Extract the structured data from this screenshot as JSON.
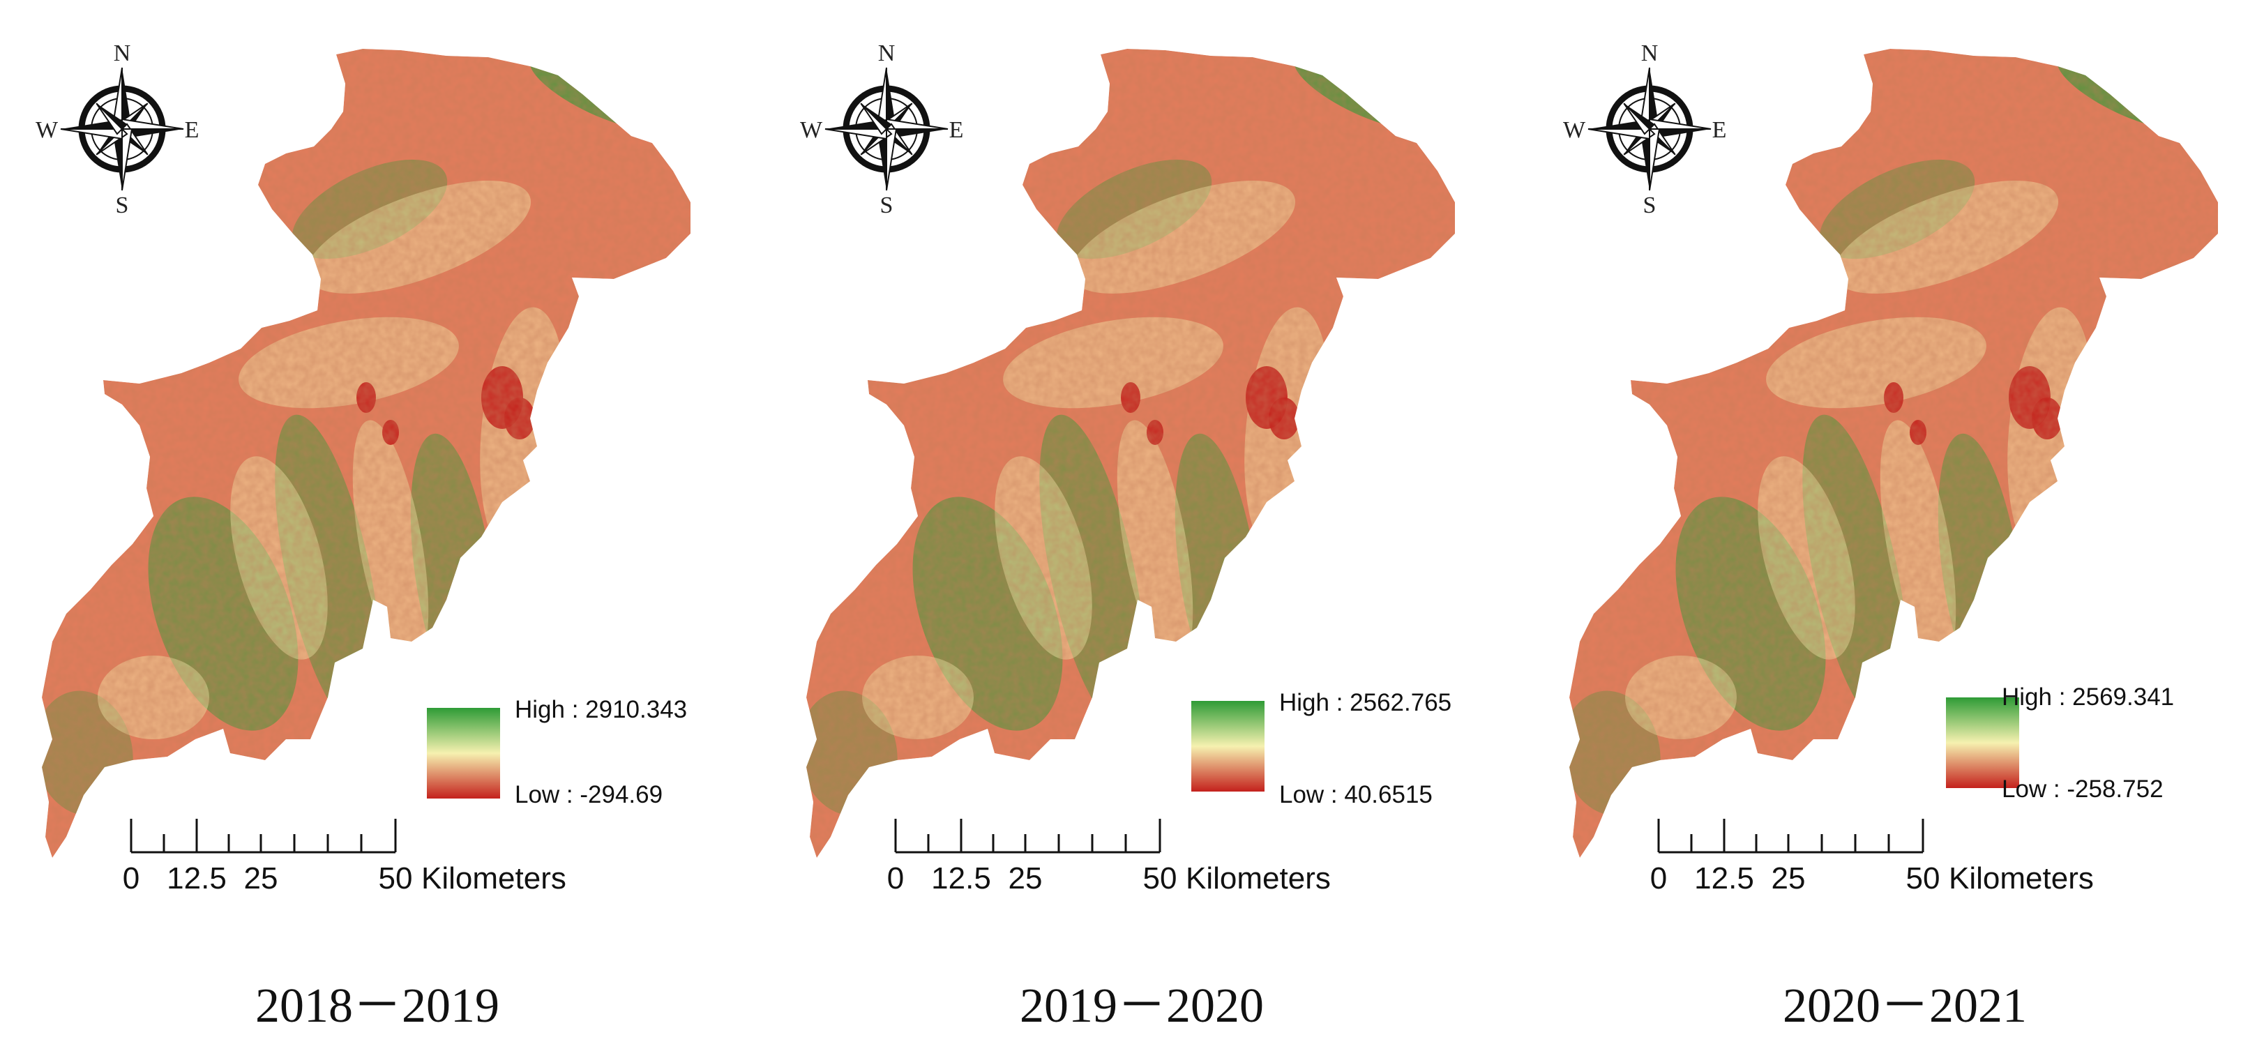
{
  "compass": {
    "n": "N",
    "s": "S",
    "e": "E",
    "w": "W"
  },
  "colors": {
    "high": "#2e9b36",
    "mid": "#f6f1b0",
    "low": "#c4211c",
    "base": "#e27c5b"
  },
  "panels": [
    {
      "period": "2018－2019",
      "legend_high": "High : 2910.343",
      "legend_low": "Low : -294.69",
      "scale_ticks": [
        "0",
        "12.5",
        "25",
        "50"
      ],
      "scale_unit": "Kilometers"
    },
    {
      "period": "2019－2020",
      "legend_high": "High : 2562.765",
      "legend_low": "Low : 40.6515",
      "scale_ticks": [
        "0",
        "12.5",
        "25",
        "50"
      ],
      "scale_unit": "Kilometers"
    },
    {
      "period": "2020－2021",
      "legend_high": "High : 2569.341",
      "legend_low": "Low : -258.752",
      "scale_ticks": [
        "0",
        "12.5",
        "25",
        "50"
      ],
      "scale_unit": "Kilometers"
    }
  ]
}
